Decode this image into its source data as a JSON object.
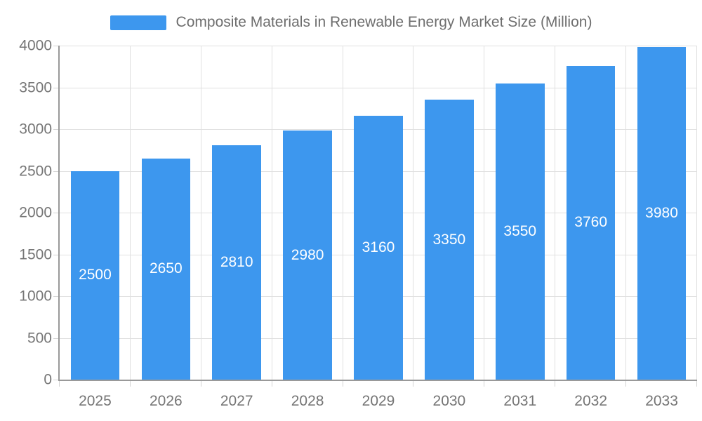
{
  "chart_data": {
    "type": "bar",
    "title": "Composite Materials in Renewable Energy Market Size (Million)",
    "categories": [
      "2025",
      "2026",
      "2027",
      "2028",
      "2029",
      "2030",
      "2031",
      "2032",
      "2033"
    ],
    "values": [
      2500,
      2650,
      2810,
      2980,
      3160,
      3350,
      3550,
      3760,
      3980
    ],
    "xlabel": "",
    "ylabel": "",
    "ylim": [
      0,
      4000
    ],
    "yticks": [
      0,
      500,
      1000,
      1500,
      2000,
      2500,
      3000,
      3500,
      4000
    ],
    "grid": true,
    "legend_position": "top",
    "bar_labels_position": "inside-center",
    "colors": {
      "bar": "#3D97EE",
      "bar_label": "#FFFFFF",
      "grid": "#E0E0E0",
      "tick": "#D4D4D4",
      "axis_line": "#999999",
      "axis_label": "#757575",
      "title": "#6E6E6E",
      "background": "#FFFFFF"
    }
  }
}
